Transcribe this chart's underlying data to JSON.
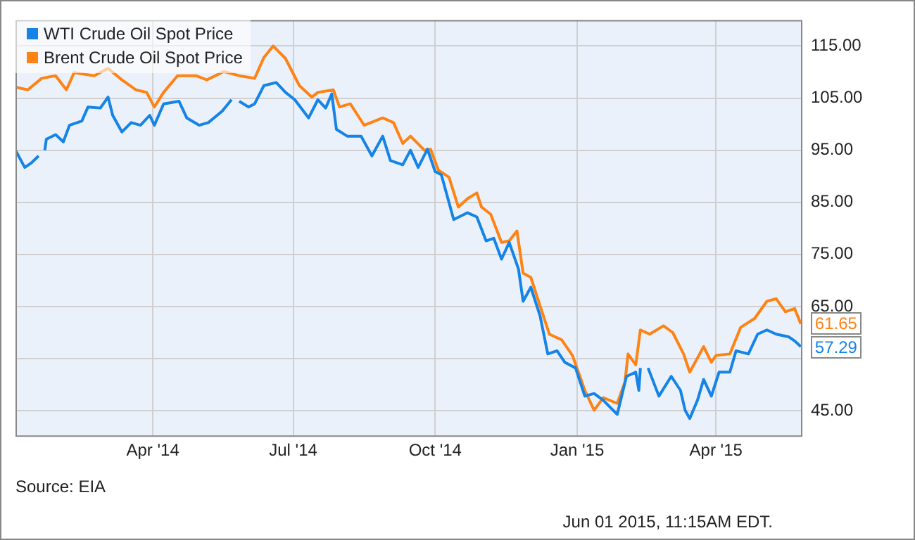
{
  "chart_data": {
    "type": "line",
    "legend": "top left",
    "grid": true,
    "marker": "none",
    "line_style": "solid",
    "xlim": [
      "2014-01-02",
      "2015-05-27"
    ],
    "xticks": [
      {
        "value": "2014-04-01",
        "label": "Apr '14"
      },
      {
        "value": "2014-07-01",
        "label": "Jul '14"
      },
      {
        "value": "2014-10-01",
        "label": "Oct '14"
      },
      {
        "value": "2015-01-01",
        "label": "Jan '15"
      },
      {
        "value": "2015-04-01",
        "label": "Apr '15"
      }
    ],
    "ylim": [
      40,
      120
    ],
    "yticks": [
      {
        "value": 45,
        "label": "45.00"
      },
      {
        "value": 55,
        "label": null
      },
      {
        "value": 65,
        "label": "65.00"
      },
      {
        "value": 75,
        "label": "75.00"
      },
      {
        "value": 85,
        "label": "85.00"
      },
      {
        "value": 95,
        "label": "95.00"
      },
      {
        "value": 105,
        "label": "105.00"
      },
      {
        "value": 115,
        "label": "115.00"
      }
    ],
    "series": [
      {
        "name": "WTI Crude Oil Spot Price",
        "color": "#1584e6",
        "x": [
          "2014-01-02",
          "2014-01-08",
          "2014-01-12",
          "2014-01-17",
          "2014-01-20",
          "2014-01-21",
          "2014-01-22",
          "2014-01-28",
          "2014-02-02",
          "2014-02-06",
          "2014-02-14",
          "2014-02-18",
          "2014-02-26",
          "2014-03-03",
          "2014-03-06",
          "2014-03-12",
          "2014-03-18",
          "2014-03-24",
          "2014-03-30",
          "2014-04-02",
          "2014-04-08",
          "2014-04-18",
          "2014-04-23",
          "2014-05-01",
          "2014-05-07",
          "2014-05-16",
          "2014-05-22",
          "2014-05-25",
          "2014-05-27",
          "2014-06-02",
          "2014-06-06",
          "2014-06-12",
          "2014-06-20",
          "2014-06-26",
          "2014-07-02",
          "2014-07-11",
          "2014-07-17",
          "2014-07-22",
          "2014-07-26",
          "2014-07-29",
          "2014-08-05",
          "2014-08-14",
          "2014-08-21",
          "2014-08-28",
          "2014-09-02",
          "2014-09-10",
          "2014-09-15",
          "2014-09-20",
          "2014-09-26",
          "2014-10-01",
          "2014-10-05",
          "2014-10-13",
          "2014-10-22",
          "2014-10-28",
          "2014-11-03",
          "2014-11-08",
          "2014-11-13",
          "2014-11-18",
          "2014-11-24",
          "2014-11-27",
          "2014-12-02",
          "2014-12-08",
          "2014-12-13",
          "2014-12-19",
          "2014-12-24",
          "2014-12-31",
          "2015-01-06",
          "2015-01-12",
          "2015-01-18",
          "2015-01-27",
          "2015-02-02",
          "2015-02-08",
          "2015-02-10",
          "2015-02-11",
          "2015-02-13",
          "2015-02-16",
          "2015-02-23",
          "2015-03-03",
          "2015-03-09",
          "2015-03-12",
          "2015-03-15",
          "2015-03-20",
          "2015-03-24",
          "2015-03-29",
          "2015-04-03",
          "2015-04-10",
          "2015-04-14",
          "2015-04-22",
          "2015-04-28",
          "2015-05-04",
          "2015-05-10",
          "2015-05-18",
          "2015-05-22",
          "2015-05-26"
        ],
        "values": [
          95.0,
          91.7,
          92.5,
          93.9,
          null,
          95.0,
          97.1,
          98.0,
          96.6,
          99.8,
          100.6,
          103.3,
          103.1,
          105.2,
          101.7,
          98.5,
          100.3,
          99.8,
          101.7,
          99.8,
          103.9,
          104.4,
          101.2,
          99.8,
          100.3,
          102.5,
          104.7,
          null,
          104.4,
          103.3,
          103.9,
          107.4,
          108.0,
          106.1,
          104.7,
          101.2,
          104.7,
          103.1,
          105.8,
          99.0,
          97.7,
          97.7,
          93.9,
          97.7,
          93.0,
          92.2,
          95.0,
          91.7,
          95.2,
          90.9,
          90.3,
          81.7,
          83.0,
          82.2,
          77.6,
          78.1,
          74.1,
          77.3,
          72.2,
          66.0,
          68.7,
          63.2,
          55.9,
          56.5,
          54.3,
          53.2,
          47.8,
          48.3,
          47.0,
          44.3,
          51.6,
          52.4,
          48.9,
          53.2,
          null,
          53.2,
          47.8,
          51.6,
          48.9,
          45.1,
          43.5,
          47.0,
          51.0,
          47.8,
          52.4,
          52.4,
          56.5,
          55.9,
          59.7,
          60.5,
          59.7,
          59.2,
          58.4,
          57.29
        ]
      },
      {
        "name": "Brent Crude Oil Spot Price",
        "color": "#fe8314",
        "x": [
          "2014-01-02",
          "2014-01-10",
          "2014-01-19",
          "2014-01-28",
          "2014-02-04",
          "2014-02-09",
          "2014-02-22",
          "2014-03-03",
          "2014-03-12",
          "2014-03-21",
          "2014-03-28",
          "2014-04-02",
          "2014-04-08",
          "2014-04-17",
          "2014-04-29",
          "2014-05-06",
          "2014-05-17",
          "2014-05-27",
          "2014-06-06",
          "2014-06-12",
          "2014-06-18",
          "2014-06-26",
          "2014-07-05",
          "2014-07-13",
          "2014-07-17",
          "2014-07-27",
          "2014-07-31",
          "2014-08-07",
          "2014-08-16",
          "2014-08-28",
          "2014-09-04",
          "2014-09-10",
          "2014-09-15",
          "2014-09-24",
          "2014-09-28",
          "2014-10-03",
          "2014-10-10",
          "2014-10-16",
          "2014-10-22",
          "2014-10-28",
          "2014-10-31",
          "2014-11-06",
          "2014-11-13",
          "2014-11-18",
          "2014-11-23",
          "2014-11-27",
          "2014-12-02",
          "2014-12-08",
          "2014-12-14",
          "2014-12-22",
          "2014-12-29",
          "2015-01-06",
          "2015-01-12",
          "2015-01-18",
          "2015-01-27",
          "2015-02-01",
          "2015-02-03",
          "2015-02-08",
          "2015-02-11",
          "2015-02-17",
          "2015-02-26",
          "2015-03-04",
          "2015-03-11",
          "2015-03-15",
          "2015-03-24",
          "2015-03-29",
          "2015-04-01",
          "2015-04-10",
          "2015-04-17",
          "2015-04-26",
          "2015-05-04",
          "2015-05-10",
          "2015-05-16",
          "2015-05-22",
          "2015-05-26"
        ],
        "values": [
          107.1,
          106.6,
          108.8,
          109.3,
          106.6,
          109.9,
          109.3,
          110.7,
          108.5,
          106.6,
          106.1,
          103.3,
          106.1,
          109.3,
          109.3,
          108.5,
          110.1,
          109.3,
          108.8,
          112.8,
          115.0,
          112.6,
          107.4,
          105.2,
          106.1,
          106.6,
          103.3,
          103.9,
          99.8,
          101.2,
          100.3,
          96.3,
          97.7,
          95.0,
          95.2,
          91.2,
          89.8,
          84.1,
          85.7,
          86.8,
          84.1,
          82.7,
          77.3,
          77.6,
          79.5,
          71.4,
          70.6,
          65.1,
          59.7,
          58.6,
          55.6,
          48.9,
          45.1,
          47.5,
          46.4,
          50.5,
          55.9,
          53.8,
          60.5,
          59.7,
          61.3,
          60.0,
          55.9,
          52.4,
          57.3,
          54.3,
          55.6,
          55.9,
          61.0,
          62.7,
          66.0,
          66.5,
          64.0,
          64.6,
          61.65
        ]
      }
    ],
    "annotations": [
      {
        "text": "61.65",
        "x": "2015-05-26",
        "y": 61.65
      },
      {
        "text": "57.29",
        "x": "2015-05-26",
        "y": 57.29
      },
      "Source: EIA",
      "Jun 01 2015, 11:15AM EDT."
    ]
  }
}
